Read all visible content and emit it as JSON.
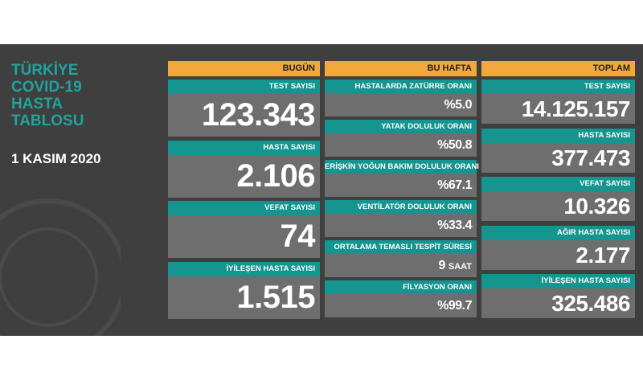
{
  "title": [
    "TÜRKİYE",
    "COVID-19",
    "HASTA",
    "TABLOSU"
  ],
  "date": "1 KASIM 2020",
  "columns": [
    {
      "header": "BUGÜN",
      "items": [
        {
          "label": "TEST SAYISI",
          "value": "123.343"
        },
        {
          "label": "HASTA SAYISI",
          "value": "2.106"
        },
        {
          "label": "VEFAT SAYISI",
          "value": "74"
        },
        {
          "label": "İYİLEŞEN HASTA SAYISI",
          "value": "1.515"
        }
      ]
    },
    {
      "header": "BU HAFTA",
      "items": [
        {
          "label": "HASTALARDA ZATÜRRE ORANI",
          "value": "%5.0"
        },
        {
          "label": "YATAK DOLULUK ORANI",
          "value": "%50.8"
        },
        {
          "label": "ERİŞKİN YOĞUN BAKIM DOLULUK ORANI",
          "value": "%67.1"
        },
        {
          "label": "VENTİLATÖR DOLULUK ORANI",
          "value": "%33.4"
        },
        {
          "label": "ORTALAMA TEMASLI TESPİT SÜRESİ",
          "value": "9",
          "unit": "SAAT"
        },
        {
          "label": "FİLYASYON ORANI",
          "value": "%99.7"
        }
      ]
    },
    {
      "header": "TOPLAM",
      "items": [
        {
          "label": "TEST SAYISI",
          "value": "14.125.157"
        },
        {
          "label": "HASTA SAYISI",
          "value": "377.473"
        },
        {
          "label": "VEFAT SAYISI",
          "value": "10.326"
        },
        {
          "label": "AĞIR HASTA SAYISI",
          "value": "2.177"
        },
        {
          "label": "İYİLEŞEN HASTA SAYISI",
          "value": "325.486"
        }
      ]
    }
  ]
}
